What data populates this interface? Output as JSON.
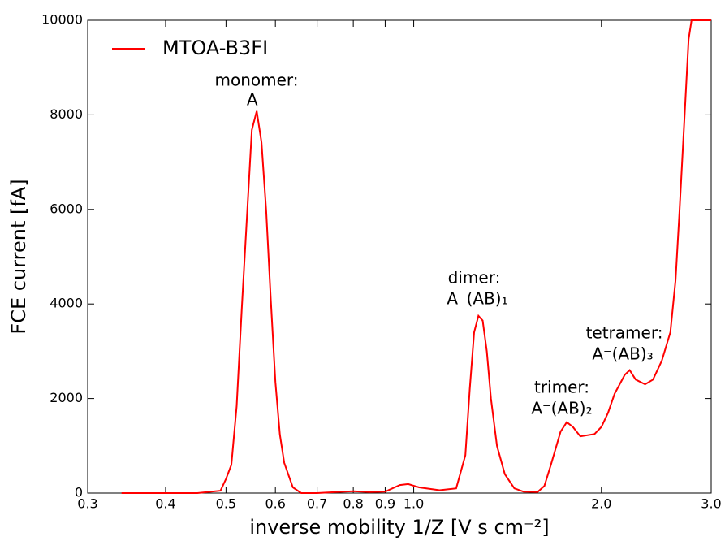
{
  "chart_data": {
    "type": "line",
    "xlabel": "inverse mobility 1/Z [V s cm⁻²]",
    "ylabel": "FCE current [fA]",
    "xscale": "log",
    "xlim": [
      0.3,
      3.0
    ],
    "ylim": [
      0,
      10000
    ],
    "xticks": [
      0.3,
      0.4,
      0.5,
      0.6,
      0.7,
      0.8,
      0.9,
      {
        "value": 1,
        "label": "1.0"
      },
      {
        "value": 2,
        "label": "2.0"
      },
      {
        "value": 3,
        "label": "3.0"
      }
    ],
    "yticks": [
      0,
      2000,
      4000,
      6000,
      8000,
      10000
    ],
    "legend": "upper left",
    "annotations": [
      "monomer:",
      "A⁻",
      "dimer:",
      "A⁻(AB)₁",
      "trimer:",
      "A⁻(AB)₂",
      "tetramer:",
      "A⁻(AB)₃"
    ],
    "x": [
      0.34,
      0.45,
      0.49,
      0.5,
      0.51,
      0.52,
      0.53,
      0.54,
      0.55,
      0.56,
      0.57,
      0.58,
      0.59,
      0.6,
      0.61,
      0.62,
      0.64,
      0.66,
      0.7,
      0.75,
      0.8,
      0.85,
      0.9,
      0.95,
      0.98,
      1.02,
      1.1,
      1.17,
      1.21,
      1.23,
      1.25,
      1.27,
      1.29,
      1.31,
      1.33,
      1.36,
      1.4,
      1.45,
      1.5,
      1.58,
      1.62,
      1.66,
      1.72,
      1.76,
      1.8,
      1.85,
      1.95,
      2.0,
      2.05,
      2.1,
      2.18,
      2.22,
      2.27,
      2.35,
      2.42,
      2.5,
      2.58,
      2.63,
      2.67,
      2.72,
      2.76,
      2.79,
      3.0
    ],
    "series": [
      {
        "name": "MTOA-B3FI",
        "color": "#ff0000",
        "values": [
          0,
          0,
          50,
          300,
          600,
          1840,
          3900,
          5790,
          7680,
          8080,
          7420,
          5960,
          4070,
          2350,
          1240,
          640,
          120,
          0,
          0,
          20,
          40,
          20,
          30,
          170,
          190,
          120,
          60,
          100,
          800,
          2200,
          3400,
          3750,
          3650,
          3000,
          2000,
          1000,
          400,
          100,
          30,
          20,
          150,
          600,
          1300,
          1500,
          1400,
          1200,
          1250,
          1400,
          1700,
          2100,
          2500,
          2600,
          2400,
          2300,
          2400,
          2800,
          3400,
          4500,
          6000,
          8000,
          9600,
          10000,
          10000
        ]
      }
    ]
  }
}
